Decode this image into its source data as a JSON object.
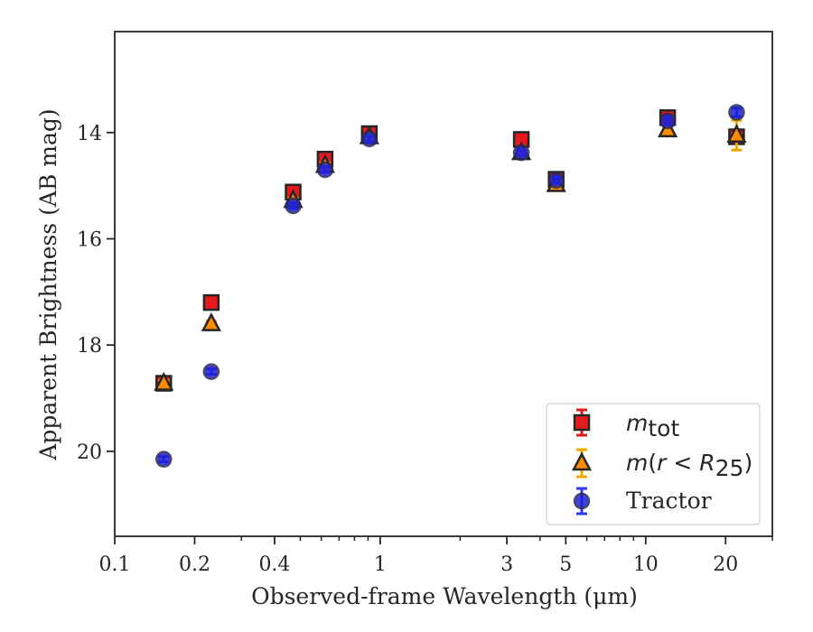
{
  "chart_data": {
    "type": "scatter",
    "xlabel": "Observed-frame Wavelength (μm)",
    "ylabel": "Apparent Brightness (AB mag)",
    "x_scale": "log",
    "xlim": [
      0.1,
      30
    ],
    "ylim": [
      21.6,
      12.1
    ],
    "y_inverted": true,
    "x_ticks": [
      0.1,
      0.2,
      0.4,
      1,
      3,
      5,
      10,
      20
    ],
    "x_tick_labels": [
      "0.1",
      "0.2",
      "0.4",
      "1",
      "3",
      "5",
      "10",
      "20"
    ],
    "y_ticks": [
      14,
      16,
      18,
      20
    ],
    "y_tick_labels": [
      "14",
      "16",
      "18",
      "20"
    ],
    "grid": false,
    "legend_position": "lower-right",
    "series": [
      {
        "name": "m_tot",
        "legend_label": "m_tot",
        "marker": "square",
        "face_color": "#e41a1c",
        "edge_color": "#262626",
        "error_color": "#e41a1c",
        "points": [
          {
            "x": 0.153,
            "y": 18.72,
            "err": 0.05
          },
          {
            "x": 0.231,
            "y": 17.2,
            "err": 0.05
          },
          {
            "x": 0.47,
            "y": 15.12,
            "err": 0.05
          },
          {
            "x": 0.62,
            "y": 14.5,
            "err": 0.05
          },
          {
            "x": 0.91,
            "y": 14.02,
            "err": 0.05
          },
          {
            "x": 3.4,
            "y": 14.13,
            "err": 0.05
          },
          {
            "x": 4.6,
            "y": 14.88,
            "err": 0.05
          },
          {
            "x": 12.1,
            "y": 13.72,
            "err": 0.07
          },
          {
            "x": 22.0,
            "y": 14.08,
            "err": 0.1
          }
        ]
      },
      {
        "name": "m(r < R25)",
        "legend_label": "m(r < R25)",
        "marker": "triangle",
        "face_color": "#ff8c00",
        "edge_color": "#262626",
        "error_color": "#f0a800",
        "points": [
          {
            "x": 0.153,
            "y": 18.72,
            "err": 0.05
          },
          {
            "x": 0.231,
            "y": 17.6,
            "err": 0.05
          },
          {
            "x": 0.47,
            "y": 15.28,
            "err": 0.05
          },
          {
            "x": 0.62,
            "y": 14.62,
            "err": 0.05
          },
          {
            "x": 0.91,
            "y": 14.08,
            "err": 0.05
          },
          {
            "x": 3.4,
            "y": 14.38,
            "err": 0.05
          },
          {
            "x": 4.6,
            "y": 14.98,
            "err": 0.05
          },
          {
            "x": 12.1,
            "y": 13.95,
            "err": 0.08
          },
          {
            "x": 22.0,
            "y": 14.05,
            "err": 0.28
          }
        ]
      },
      {
        "name": "Tractor",
        "legend_label": "Tractor",
        "marker": "circle",
        "face_color": "#1f1fd6",
        "edge_color": "#2a2a50",
        "error_color": "#2a3cf0",
        "points": [
          {
            "x": 0.153,
            "y": 20.15,
            "err": 0.05
          },
          {
            "x": 0.231,
            "y": 18.5,
            "err": 0.05
          },
          {
            "x": 0.47,
            "y": 15.38,
            "err": 0.05
          },
          {
            "x": 0.62,
            "y": 14.7,
            "err": 0.05
          },
          {
            "x": 0.91,
            "y": 14.12,
            "err": 0.05
          },
          {
            "x": 3.4,
            "y": 14.38,
            "err": 0.05
          },
          {
            "x": 4.6,
            "y": 14.9,
            "err": 0.05
          },
          {
            "x": 12.1,
            "y": 13.78,
            "err": 0.08
          },
          {
            "x": 22.0,
            "y": 13.62,
            "err": 0.08
          }
        ]
      }
    ]
  }
}
